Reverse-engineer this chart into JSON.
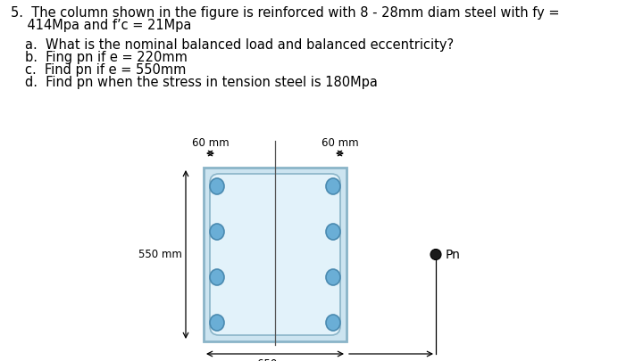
{
  "background": "#ffffff",
  "text_color": "#000000",
  "circle_fill": "#6aaed6",
  "circle_edge": "#4a8ab0",
  "pn_circle_fill": "#1a1a1a",
  "fig_width": 7.2,
  "fig_height": 4.05,
  "dpi": 100,
  "title_line1": "5.  The column shown in the figure is reinforced with 8 - 28mm diam steel with fy =",
  "title_line2": "    414Mpa and f’c = 21Mpa",
  "qa": "a.  What is the nominal balanced load and balanced eccentricity?",
  "qb": "b.  Fing pn if e = 220mm",
  "qc": "c.  Find pn if e = 550mm",
  "qd": "d.  Find pn when the stress in tension steel is 180Mpa"
}
